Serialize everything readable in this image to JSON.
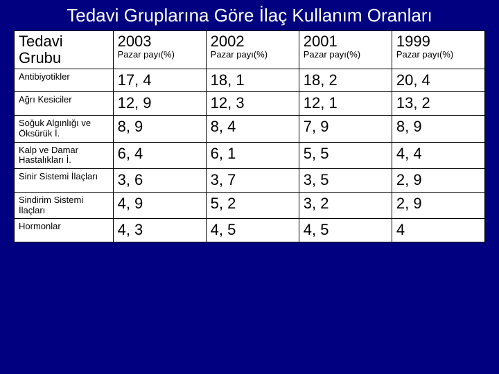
{
  "title": "Tedavi Gruplarına Göre İlaç Kullanım Oranları",
  "colors": {
    "background": "#000080",
    "title_text": "#ffffff",
    "cell_bg": "#ffffff",
    "cell_text": "#000000",
    "border": "#000000"
  },
  "typography": {
    "family": "Comic Sans MS",
    "title_fontsize": 26,
    "header_fontsize": 22,
    "subheader_fontsize": 13,
    "rowlabel_fontsize": 13,
    "value_fontsize": 22
  },
  "table": {
    "type": "table",
    "header": {
      "rowheader_main": "Tedavi Grubu",
      "years": [
        "2003",
        "2002",
        "2001",
        "1999"
      ],
      "subheader": "Pazar payı(%)"
    },
    "rows": [
      {
        "label": "Antibiyotikler",
        "values": [
          "17, 4",
          "18, 1",
          "18, 2",
          "20, 4"
        ]
      },
      {
        "label": "Ağrı Kesiciler",
        "values": [
          "12, 9",
          "12, 3",
          "12, 1",
          "13, 2"
        ]
      },
      {
        "label": "Soğuk Algınlığı ve Öksürük İ.",
        "values": [
          "8, 9",
          "8, 4",
          "7, 9",
          "8, 9"
        ]
      },
      {
        "label": "Kalp ve Damar Hastalıkları İ.",
        "values": [
          "6, 4",
          "6, 1",
          "5, 5",
          "4, 4"
        ]
      },
      {
        "label": "Sinir Sistemi İlaçları",
        "values": [
          "3, 6",
          "3, 7",
          "3, 5",
          "2, 9"
        ]
      },
      {
        "label": "Sindirim Sistemi İlaçları",
        "values": [
          "4, 9",
          "5, 2",
          "3, 2",
          "2, 9"
        ]
      },
      {
        "label": "Hormonlar",
        "values": [
          "4, 3",
          "4, 5",
          "4, 5",
          "4"
        ]
      }
    ]
  }
}
